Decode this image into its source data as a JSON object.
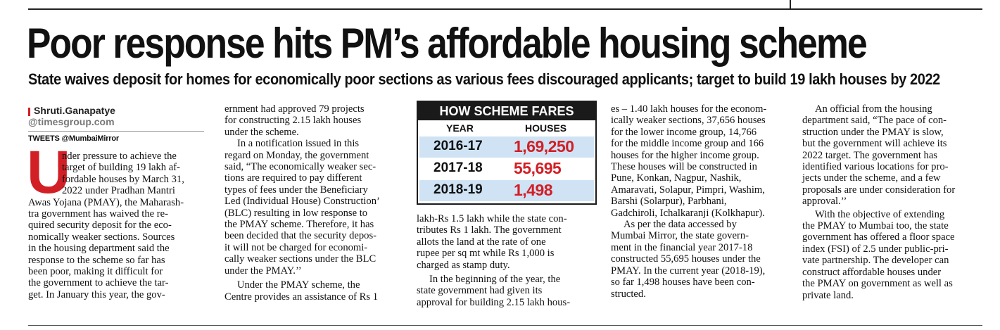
{
  "headline": "Poor response hits PM’s affordable housing scheme",
  "deck": "State waives deposit for homes for economically poor sections as various fees discouraged applicants; target to build 19 lakh houses by 2022",
  "byline": {
    "name": "Shruti.Ganapatye",
    "email": "@timesgroup.com",
    "tweets": "TWEETS @MumbaiMirror"
  },
  "colors": {
    "accent": "#d21f26",
    "table_shade": "#cfe3f5",
    "table_header_bg": "#1a1a1a"
  },
  "table": {
    "title": "HOW SCHEME FARES",
    "col_year": "YEAR",
    "col_houses": "HOUSES",
    "rows": [
      {
        "year": "2016-17",
        "houses": "1,69,250"
      },
      {
        "year": "2017-18",
        "houses": "55,695"
      },
      {
        "year": "2018-19",
        "houses": "1,498"
      }
    ]
  },
  "body": {
    "dropcap": "U",
    "col1": [
      "nder pressure to achieve the",
      "target of building 19 lakh af-",
      "fordable houses by March 31,",
      "2022 under Pradhan Mantri",
      "Awas Yojana (PMAY), the Maharash-",
      "tra government has waived the re-",
      "quired security deposit for the eco-",
      "nomically weaker sections. Sources",
      "in the housing department said the",
      "response to the scheme so far has",
      "been poor, making it difficult for",
      "the government to achieve the tar-",
      "get. In January this year, the gov-"
    ],
    "col2": [
      "ernment had approved 79 projects",
      "for constructing 2.15 lakh houses",
      "under the scheme.",
      "In a notification issued in this",
      "regard on Monday, the government",
      "said, “The economically weaker sec-",
      "tions are required to pay different",
      "types of fees under the Beneficiary",
      "Led (Individual House) Construction’",
      "(BLC) resulting in low response to",
      "the PMAY scheme. Therefore, it has",
      "been decided that the security depos-",
      "it will not be charged for economi-",
      "cally weaker sections under the BLC",
      "under the PMAY.’’",
      "Under the PMAY scheme, the",
      "Centre provides an assistance of Rs 1"
    ],
    "col3": [
      "lakh-Rs 1.5 lakh while the state con-",
      "tributes Rs 1 lakh. The government",
      "allots the land at the rate of one",
      "rupee per sq mt while Rs 1,000 is",
      "charged as stamp duty.",
      "In the beginning of the year, the",
      "state government had given its",
      "approval for building 2.15 lakh hous-"
    ],
    "col4": [
      "es – 1.40 lakh houses for the econom-",
      "ically weaker sections, 37,656 houses",
      "for the lower income group, 14,766",
      "for the middle income group and 166",
      "houses for the higher income group.",
      "These houses will be constructed in",
      "Pune, Konkan, Nagpur, Nashik,",
      "Amaravati, Solapur, Pimpri, Washim,",
      "Barshi (Solarpur), Parbhani,",
      "Gadchiroli, Ichalkaranji (Kolkhapur).",
      "As per the data accessed by",
      "Mumbai Mirror, the state govern-",
      "ment in the financial year 2017-18",
      "constructed 55,695 houses under the",
      "PMAY. In the current year (2018-19),",
      "so far 1,498 houses have been con-",
      "structed."
    ],
    "col5": [
      "An official from the housing",
      "department said, “The pace of con-",
      "struction under the PMAY is slow,",
      "but the government will achieve its",
      "2022 target. The government has",
      "identified various locations for pro-",
      "jects under the scheme, and a few",
      "proposals are under consideration for",
      "approval.’’",
      "With the objective of extending",
      "the PMAY to Mumbai too, the state",
      "government has offered a floor space",
      "index (FSI) of 2.5 under public-pri-",
      "vate partnership. The developer can",
      "construct affordable houses under",
      "the PMAY on government as well as",
      "private land."
    ]
  }
}
